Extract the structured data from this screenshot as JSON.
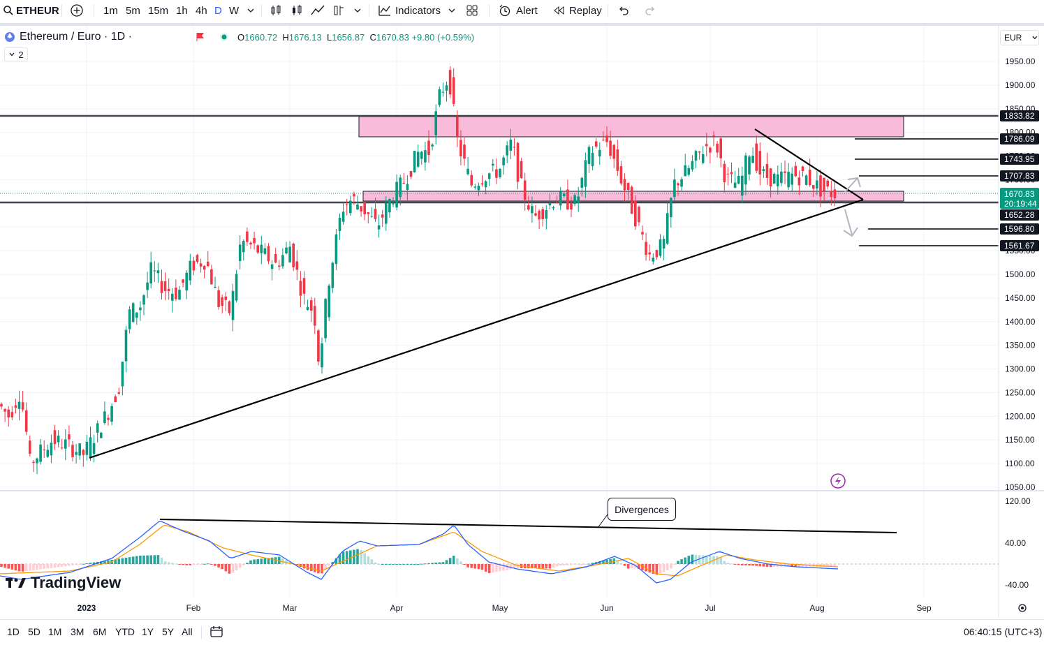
{
  "toolbar": {
    "symbol": "ETHEUR",
    "intervals": [
      "1m",
      "5m",
      "15m",
      "1h",
      "4h",
      "D",
      "W"
    ],
    "active_interval": "D",
    "indicators_label": "Indicators",
    "alert_label": "Alert",
    "replay_label": "Replay"
  },
  "legend": {
    "title": "Ethereum / Euro · 1D ·",
    "open_key": "O",
    "open": "1660.72",
    "high_key": "H",
    "high": "1676.13",
    "low_key": "L",
    "low": "1656.87",
    "close_key": "C",
    "close": "1670.83",
    "change": "+9.80 (+0.59%)",
    "indicators_count": "2"
  },
  "currency": "EUR",
  "price_axis": {
    "ticks": [
      "1950.00",
      "1900.00",
      "1850.00",
      "1800.00",
      "1750.00",
      "1700.00",
      "1650.00",
      "1600.00",
      "1550.00",
      "1500.00",
      "1450.00",
      "1400.00",
      "1350.00",
      "1300.00",
      "1250.00",
      "1200.00",
      "1150.00",
      "1100.00",
      "1050.00"
    ],
    "price_labels": [
      "1833.82",
      "1786.09",
      "1743.95",
      "1707.83",
      "1652.28",
      "1596.80",
      "1561.67"
    ],
    "current_price": "1670.83",
    "countdown": "20:19:44"
  },
  "macd_axis": {
    "ticks": [
      "120.00",
      "40.00",
      "-40.00"
    ]
  },
  "time_axis": {
    "labels": [
      "2023",
      "Feb",
      "Mar",
      "Apr",
      "May",
      "Jun",
      "Jul",
      "Aug",
      "Sep"
    ]
  },
  "annotation": {
    "divergences": "Divergences"
  },
  "branding": {
    "logo_text": "TradingView"
  },
  "bottombar": {
    "ranges": [
      "1D",
      "5D",
      "1M",
      "3M",
      "6M",
      "YTD",
      "1Y",
      "5Y",
      "All"
    ],
    "clock": "06:40:15 (UTC+3)"
  },
  "colors": {
    "up": "#089981",
    "down": "#f23645",
    "accent": "#2962ff",
    "zone": "#f8bbd9"
  }
}
